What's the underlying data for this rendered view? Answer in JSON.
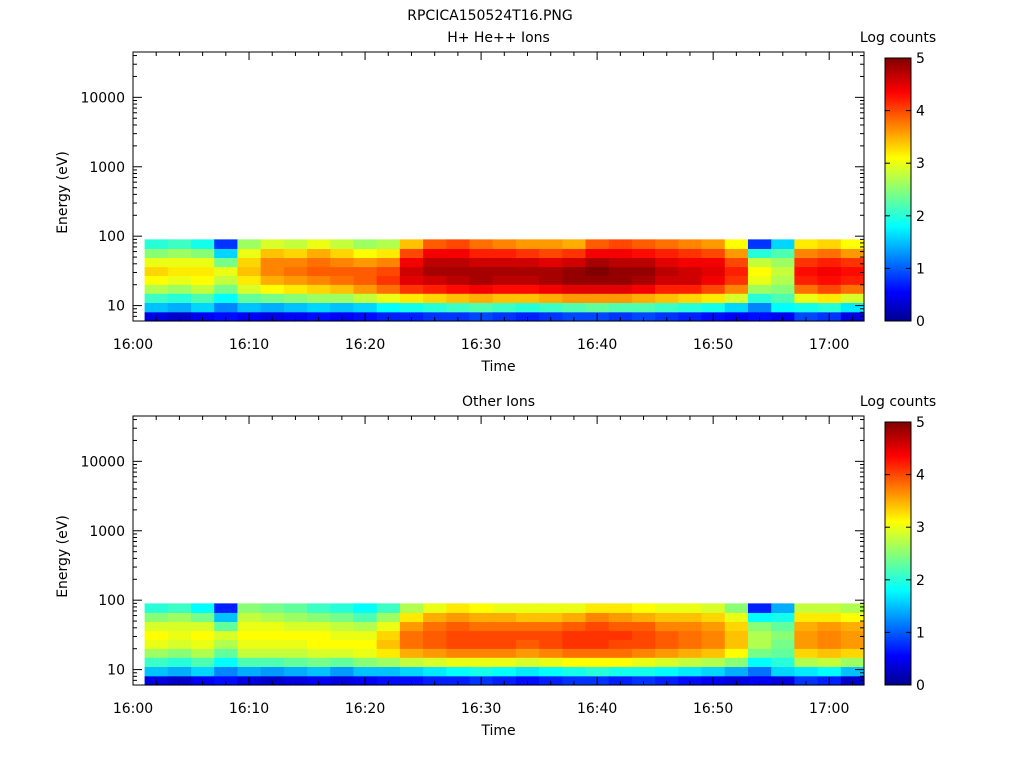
{
  "figure_title": "RPCICA150524T16.PNG",
  "chart_data": [
    {
      "type": "heatmap",
      "title": "H+ He++ Ions",
      "xlabel": "Time",
      "ylabel": "Energy (eV)",
      "x_ticks": [
        "16:00",
        "16:10",
        "16:20",
        "16:30",
        "16:40",
        "16:50",
        "17:00"
      ],
      "xlim": [
        "16:00",
        "17:03"
      ],
      "y_scale": "log",
      "y_ticks": [
        10,
        100,
        1000,
        10000
      ],
      "y_tick_labels": [
        "10",
        "100",
        "1000",
        "10000"
      ],
      "ylim": [
        6,
        45000
      ],
      "colorbar": {
        "label": "Log counts",
        "range": [
          0,
          5
        ],
        "ticks": [
          "0",
          "1",
          "2",
          "3",
          "4",
          "5"
        ]
      },
      "energy_bins_eV": [
        7,
        9.5,
        13,
        17.5,
        23.5,
        31.5,
        42.5,
        57.5,
        77.5
      ],
      "time_bins": [
        "16:02",
        "16:04",
        "16:06",
        "16:08",
        "16:10",
        "16:12",
        "16:14",
        "16:16",
        "16:18",
        "16:20",
        "16:22",
        "16:24",
        "16:26",
        "16:28",
        "16:30",
        "16:32",
        "16:34",
        "16:36",
        "16:38",
        "16:40",
        "16:42",
        "16:44",
        "16:46",
        "16:48",
        "16:50",
        "16:52",
        "16:54",
        "16:56",
        "16:58",
        "17:00",
        "17:02"
      ],
      "log_counts": [
        [
          0.4,
          1.5,
          2.1,
          2.7,
          3.1,
          3.3,
          3.0,
          2.5,
          2.0
        ],
        [
          0.3,
          1.4,
          2.0,
          2.6,
          3.0,
          3.2,
          3.0,
          2.6,
          2.1
        ],
        [
          0.5,
          1.6,
          2.2,
          2.8,
          3.1,
          3.2,
          3.0,
          2.5,
          1.9
        ],
        [
          0.6,
          1.2,
          1.8,
          2.4,
          2.8,
          3.0,
          2.4,
          1.6,
          0.8
        ],
        [
          0.5,
          1.5,
          2.3,
          2.9,
          3.2,
          3.4,
          3.3,
          3.0,
          2.6
        ],
        [
          0.4,
          1.4,
          2.4,
          3.1,
          3.5,
          3.7,
          3.7,
          3.4,
          2.9
        ],
        [
          0.5,
          1.5,
          2.5,
          3.2,
          3.6,
          3.8,
          3.7,
          3.3,
          2.8
        ],
        [
          0.6,
          1.6,
          2.6,
          3.3,
          3.7,
          3.9,
          3.8,
          3.5,
          3.0
        ],
        [
          0.5,
          1.5,
          2.6,
          3.4,
          3.8,
          3.9,
          3.7,
          3.3,
          2.8
        ],
        [
          0.6,
          1.6,
          2.8,
          3.6,
          3.9,
          3.9,
          3.6,
          3.1,
          2.6
        ],
        [
          0.7,
          1.8,
          3.0,
          3.8,
          4.1,
          4.0,
          3.7,
          3.2,
          2.7
        ],
        [
          0.7,
          1.9,
          3.2,
          4.1,
          4.5,
          4.6,
          4.4,
          4.0,
          3.4
        ],
        [
          0.8,
          2.0,
          3.3,
          4.2,
          4.6,
          4.8,
          4.7,
          4.4,
          3.9
        ],
        [
          0.8,
          2.1,
          3.4,
          4.3,
          4.7,
          4.8,
          4.7,
          4.4,
          4.0
        ],
        [
          0.9,
          2.2,
          3.5,
          4.4,
          4.8,
          4.8,
          4.6,
          4.2,
          3.8
        ],
        [
          0.8,
          2.1,
          3.4,
          4.3,
          4.7,
          4.8,
          4.6,
          4.2,
          3.7
        ],
        [
          0.7,
          2.0,
          3.4,
          4.3,
          4.7,
          4.8,
          4.6,
          4.1,
          3.6
        ],
        [
          0.8,
          2.1,
          3.5,
          4.4,
          4.8,
          4.8,
          4.5,
          4.0,
          3.6
        ],
        [
          0.9,
          2.2,
          3.6,
          4.5,
          4.9,
          4.9,
          4.6,
          4.1,
          3.5
        ],
        [
          0.9,
          2.3,
          3.6,
          4.5,
          4.9,
          5.0,
          4.8,
          4.4,
          3.9
        ],
        [
          0.8,
          2.2,
          3.6,
          4.5,
          4.9,
          4.9,
          4.7,
          4.4,
          4.0
        ],
        [
          0.9,
          2.2,
          3.5,
          4.4,
          4.8,
          4.9,
          4.7,
          4.3,
          3.9
        ],
        [
          0.8,
          2.1,
          3.4,
          4.2,
          4.6,
          4.7,
          4.5,
          4.2,
          3.8
        ],
        [
          0.7,
          2.0,
          3.3,
          4.2,
          4.6,
          4.6,
          4.4,
          4.1,
          3.7
        ],
        [
          0.6,
          1.9,
          3.2,
          4.0,
          4.4,
          4.5,
          4.4,
          4.0,
          3.6
        ],
        [
          0.5,
          1.6,
          2.9,
          3.7,
          4.1,
          4.2,
          4.0,
          3.6,
          3.1
        ],
        [
          0.6,
          1.2,
          2.0,
          2.6,
          3.0,
          3.1,
          2.8,
          2.0,
          0.8
        ],
        [
          0.5,
          1.8,
          2.2,
          2.5,
          2.7,
          2.8,
          2.6,
          2.2,
          1.6
        ],
        [
          0.9,
          1.9,
          3.0,
          3.8,
          4.2,
          4.3,
          4.1,
          3.7,
          3.2
        ],
        [
          0.8,
          2.0,
          3.2,
          4.0,
          4.3,
          4.4,
          4.2,
          3.8,
          3.3
        ],
        [
          0.4,
          1.7,
          2.9,
          3.8,
          4.2,
          4.3,
          4.1,
          3.6,
          3.1
        ]
      ]
    },
    {
      "type": "heatmap",
      "title": "Other Ions",
      "xlabel": "Time",
      "ylabel": "Energy (eV)",
      "x_ticks": [
        "16:00",
        "16:10",
        "16:20",
        "16:30",
        "16:40",
        "16:50",
        "17:00"
      ],
      "xlim": [
        "16:00",
        "17:03"
      ],
      "y_scale": "log",
      "y_ticks": [
        10,
        100,
        1000,
        10000
      ],
      "y_tick_labels": [
        "10",
        "100",
        "1000",
        "10000"
      ],
      "ylim": [
        6,
        45000
      ],
      "colorbar": {
        "label": "Log counts",
        "range": [
          0,
          5
        ],
        "ticks": [
          "0",
          "1",
          "2",
          "3",
          "4",
          "5"
        ]
      },
      "energy_bins_eV": [
        7,
        9.5,
        13,
        17.5,
        23.5,
        31.5,
        42.5,
        57.5,
        77.5
      ],
      "time_bins": [
        "16:02",
        "16:04",
        "16:06",
        "16:08",
        "16:10",
        "16:12",
        "16:14",
        "16:16",
        "16:18",
        "16:20",
        "16:22",
        "16:24",
        "16:26",
        "16:28",
        "16:30",
        "16:32",
        "16:34",
        "16:36",
        "16:38",
        "16:40",
        "16:42",
        "16:44",
        "16:46",
        "16:48",
        "16:50",
        "16:52",
        "16:54",
        "16:56",
        "16:58",
        "17:00",
        "17:02"
      ],
      "log_counts": [
        [
          0.4,
          1.5,
          2.1,
          2.6,
          3.0,
          3.1,
          2.9,
          2.5,
          2.0
        ],
        [
          0.3,
          1.4,
          2.0,
          2.5,
          2.9,
          3.0,
          2.9,
          2.6,
          2.1
        ],
        [
          0.5,
          1.6,
          2.2,
          2.7,
          3.0,
          3.1,
          2.9,
          2.4,
          1.8
        ],
        [
          0.6,
          1.2,
          1.8,
          2.3,
          2.7,
          2.9,
          2.3,
          1.5,
          0.7
        ],
        [
          0.4,
          1.4,
          2.2,
          2.8,
          3.0,
          3.1,
          3.0,
          2.8,
          2.5
        ],
        [
          0.3,
          1.3,
          2.2,
          2.8,
          3.0,
          3.1,
          3.0,
          2.7,
          2.4
        ],
        [
          0.4,
          1.4,
          2.3,
          2.8,
          3.0,
          3.1,
          2.9,
          2.6,
          2.3
        ],
        [
          0.5,
          1.5,
          2.4,
          2.9,
          3.1,
          3.1,
          2.9,
          2.5,
          2.1
        ],
        [
          0.4,
          1.3,
          2.3,
          2.9,
          3.1,
          3.0,
          2.8,
          2.4,
          2.0
        ],
        [
          0.5,
          1.5,
          2.5,
          3.0,
          3.1,
          3.0,
          2.7,
          2.2,
          1.8
        ],
        [
          0.6,
          1.5,
          2.6,
          3.2,
          3.4,
          3.3,
          3.0,
          2.6,
          2.1
        ],
        [
          0.6,
          1.6,
          2.8,
          3.5,
          3.8,
          3.8,
          3.6,
          3.2,
          2.7
        ],
        [
          0.7,
          1.7,
          2.9,
          3.6,
          3.9,
          3.9,
          3.8,
          3.5,
          3.0
        ],
        [
          0.7,
          1.8,
          3.0,
          3.7,
          4.0,
          4.0,
          3.9,
          3.6,
          3.2
        ],
        [
          0.8,
          1.9,
          3.0,
          3.7,
          4.0,
          4.0,
          3.8,
          3.5,
          3.1
        ],
        [
          0.7,
          1.8,
          3.0,
          3.7,
          4.0,
          4.0,
          3.8,
          3.5,
          3.0
        ],
        [
          0.6,
          1.7,
          2.9,
          3.6,
          3.9,
          4.0,
          3.8,
          3.4,
          3.0
        ],
        [
          0.7,
          1.8,
          3.0,
          3.7,
          4.0,
          4.0,
          3.8,
          3.4,
          3.0
        ],
        [
          0.8,
          1.9,
          3.1,
          3.8,
          4.1,
          4.1,
          3.9,
          3.5,
          3.0
        ],
        [
          0.8,
          2.0,
          3.1,
          3.8,
          4.1,
          4.1,
          4.0,
          3.7,
          3.2
        ],
        [
          0.7,
          1.9,
          3.1,
          3.8,
          4.0,
          4.1,
          3.9,
          3.6,
          3.2
        ],
        [
          0.8,
          1.9,
          3.0,
          3.7,
          4.0,
          4.0,
          3.9,
          3.5,
          3.1
        ],
        [
          0.7,
          1.8,
          2.9,
          3.6,
          3.9,
          3.9,
          3.7,
          3.4,
          3.0
        ],
        [
          0.6,
          1.7,
          2.8,
          3.5,
          3.8,
          3.8,
          3.7,
          3.4,
          3.0
        ],
        [
          0.5,
          1.6,
          2.7,
          3.4,
          3.7,
          3.7,
          3.6,
          3.3,
          2.9
        ],
        [
          0.4,
          1.4,
          2.5,
          3.1,
          3.4,
          3.4,
          3.3,
          3.0,
          2.5
        ],
        [
          0.5,
          1.1,
          1.8,
          2.4,
          2.7,
          2.7,
          2.5,
          1.8,
          0.7
        ],
        [
          0.4,
          1.6,
          2.0,
          2.3,
          2.4,
          2.5,
          2.3,
          1.9,
          1.4
        ],
        [
          0.8,
          1.7,
          2.7,
          3.3,
          3.6,
          3.6,
          3.5,
          3.2,
          2.8
        ],
        [
          0.7,
          1.8,
          2.8,
          3.4,
          3.7,
          3.7,
          3.6,
          3.2,
          2.8
        ],
        [
          0.3,
          1.5,
          2.6,
          3.3,
          3.6,
          3.6,
          3.5,
          3.1,
          2.7
        ]
      ]
    }
  ]
}
